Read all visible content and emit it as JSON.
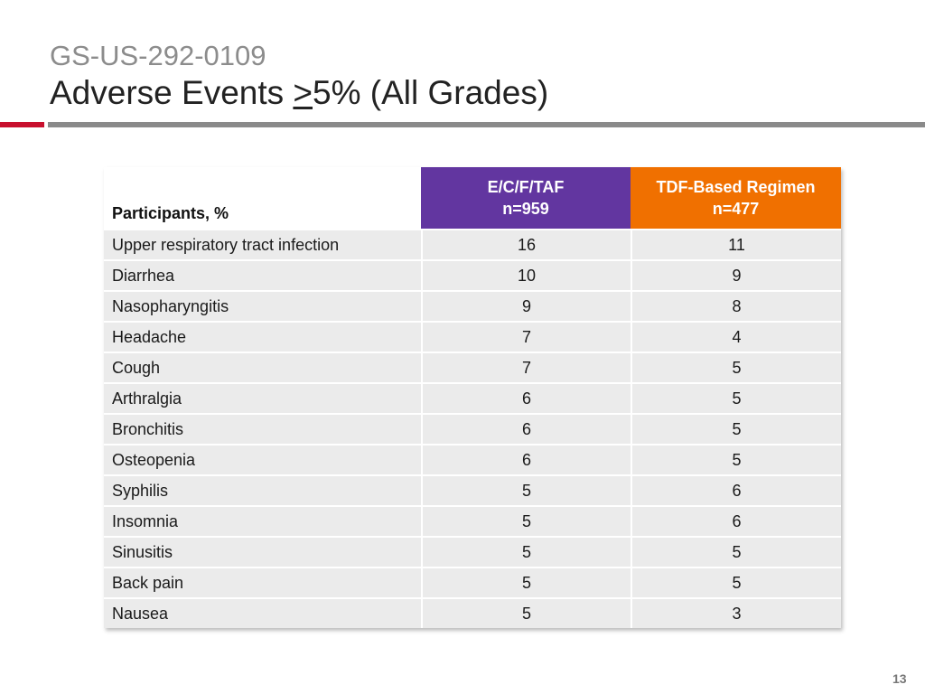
{
  "header": {
    "subtitle": "GS-US-292-0109",
    "title_prefix": "Adverse Events ",
    "title_ge": ">",
    "title_suffix": "5% (All Grades)"
  },
  "colors": {
    "purple": "#6236a0",
    "orange": "#f07000",
    "accent_red": "#c8102e"
  },
  "table": {
    "label_header": "Participants, %",
    "groups": [
      {
        "name": "E/C/F/TAF",
        "n": "n=959"
      },
      {
        "name": "TDF-Based Regimen",
        "n": "n=477"
      }
    ],
    "rows": [
      {
        "event": "Upper respiratory tract infection",
        "a": "16",
        "b": "11"
      },
      {
        "event": "Diarrhea",
        "a": "10",
        "b": "9"
      },
      {
        "event": "Nasopharyngitis",
        "a": "9",
        "b": "8"
      },
      {
        "event": "Headache",
        "a": "7",
        "b": "4"
      },
      {
        "event": "Cough",
        "a": "7",
        "b": "5"
      },
      {
        "event": "Arthralgia",
        "a": "6",
        "b": "5"
      },
      {
        "event": "Bronchitis",
        "a": "6",
        "b": "5"
      },
      {
        "event": "Osteopenia",
        "a": "6",
        "b": "5"
      },
      {
        "event": "Syphilis",
        "a": "5",
        "b": "6"
      },
      {
        "event": "Insomnia",
        "a": "5",
        "b": "6"
      },
      {
        "event": "Sinusitis",
        "a": "5",
        "b": "5"
      },
      {
        "event": "Back pain",
        "a": "5",
        "b": "5"
      },
      {
        "event": "Nausea",
        "a": "5",
        "b": "3"
      }
    ]
  },
  "page_number": "13"
}
